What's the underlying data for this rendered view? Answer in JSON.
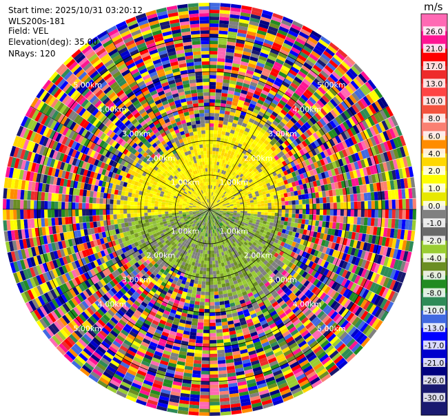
{
  "header": {
    "start_time": "Start time: 2025/10/31 03:20:12",
    "instrument": "WLS200s-181",
    "field": "Field: VEL",
    "elevation": "Elevation(deg): 35.00",
    "nrays": "NRays: 120"
  },
  "chart_data": {
    "type": "ppi",
    "field": "VEL",
    "units": "m/s",
    "elevation_deg": 35.0,
    "n_rays": 120,
    "max_range_km": 6.0,
    "range_rings_km": [
      1.0,
      2.0,
      3.0,
      4.0,
      5.0
    ],
    "ring_labels": [
      "1.00km",
      "2.00km",
      "3.00km",
      "4.00km",
      "5.00km"
    ],
    "colorbar": {
      "unit": "m/s",
      "ticks": [
        "26.0",
        "21.0",
        "17.0",
        "13.0",
        "10.0",
        "8.0",
        "6.0",
        "4.0",
        "2.0",
        "1.0",
        "0.0",
        "-1.0",
        "-2.0",
        "-4.0",
        "-6.0",
        "-8.0",
        "-10.0",
        "-13.0",
        "-17.0",
        "-21.0",
        "-26.0",
        "-30.0"
      ],
      "colors": [
        "#ff69b4",
        "#ff1493",
        "#ff0000",
        "#ee2c2c",
        "#ff4444",
        "#f4523d",
        "#fa8072",
        "#ff8c00",
        "#ffd700",
        "#ffff00",
        "#e8e800",
        "#808080",
        "#696969",
        "#9acd32",
        "#6b8e23",
        "#228b22",
        "#2e8b57",
        "#4169e1",
        "#0000ff",
        "#0000cd",
        "#000080",
        "#191970",
        "#1a1a70"
      ]
    },
    "sector_summary": [
      {
        "range_km": "0-2.5",
        "azimuth": "north half",
        "velocity": "positive 1 to 4 m/s (yellow)"
      },
      {
        "range_km": "0-2.5",
        "azimuth": "south half",
        "velocity": "negative -1 to -4 m/s (olive/green)"
      },
      {
        "range_km": "2.5-6",
        "azimuth": "all",
        "velocity": "noisy, full range -30 to 26 m/s"
      }
    ]
  }
}
